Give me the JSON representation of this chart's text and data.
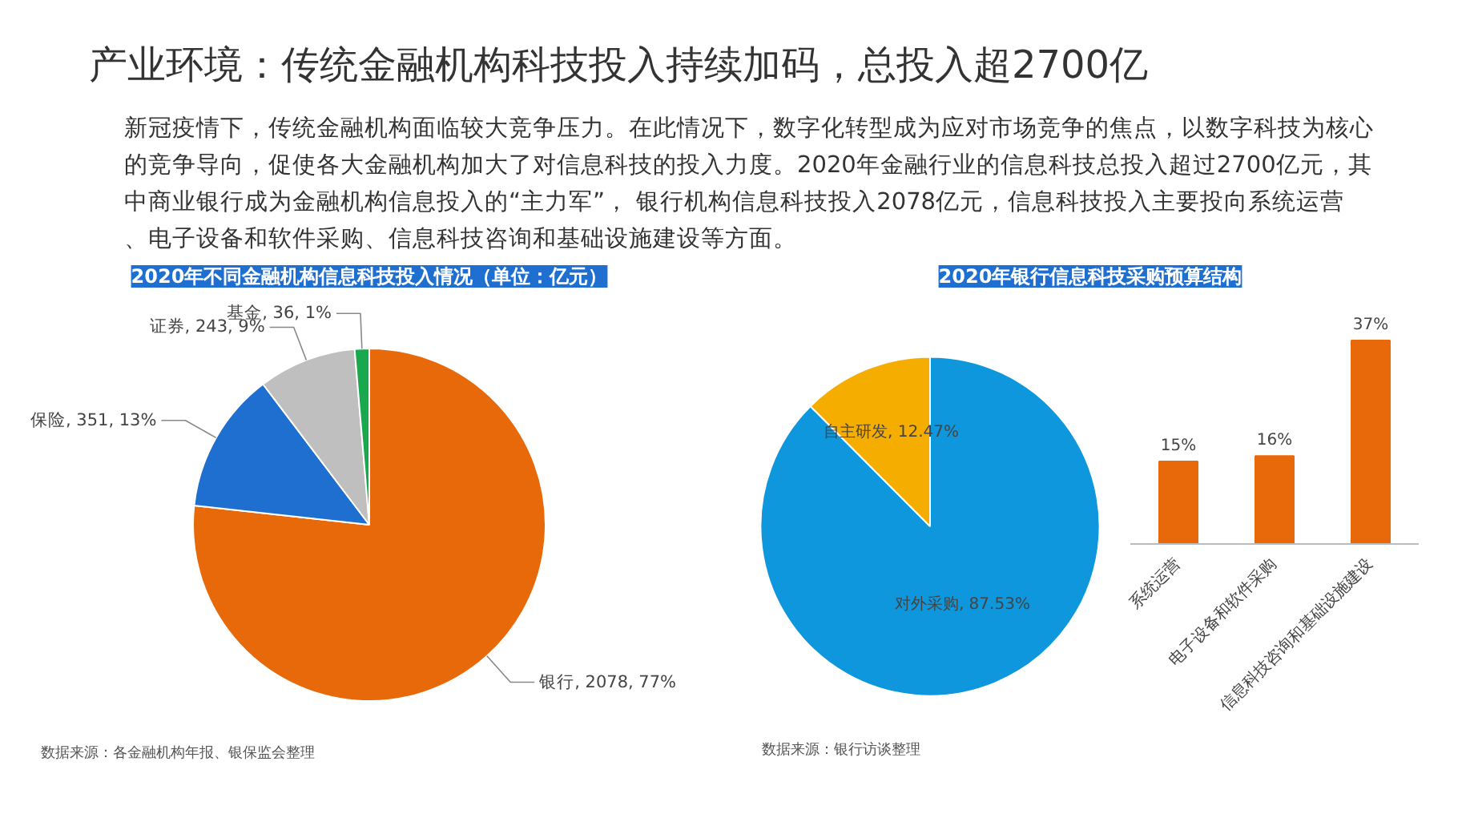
{
  "chart_data": [
    {
      "type": "other",
      "title": "产业环境：传统金融机构科技投入持续加码，总投入超2700亿",
      "subtitle": "新冠疫情下，传统金融机构面临较大竞争压力。在此情况下，数字化转型成为应对市场竞争的焦点，以数字科技为核心的竞争导向，促使各大金融机构加大了对信息科技的投入力度。2020年金融行业的信息科技总投入超过2700亿元，其中商业银行成为金融机构信息投入的“主力军”， 银行机构信息科技投入2078亿元，信息科技投入主要投向系统运营、电子设备和软件采购、信息科技咨询和基础设施建设等方面。"
    },
    {
      "type": "pie",
      "title": "2020年不同金融机构信息科技投入情况（单位：亿元）",
      "categories": [
        "银行",
        "保险",
        "证券",
        "基金"
      ],
      "values": [
        2078,
        351,
        243,
        36
      ],
      "value_labels": [
        "2078, 77%",
        "351, 13%",
        "243, 9%",
        "36, 1%"
      ],
      "colors": [
        "#e8690a",
        "#1e6fcf",
        "#bfbfbf",
        "#1aa84f"
      ],
      "annotations": [
        "数据来源：各金融机构年报、银保监会整理"
      ]
    },
    {
      "type": "pie",
      "title": "2020年银行信息科技采购预算结构",
      "categories": [
        "对外采购",
        "自主研发"
      ],
      "values": [
        87.53,
        12.47
      ],
      "value_labels": [
        "87.53%",
        "12.47%"
      ],
      "colors": [
        "#0e97dc",
        "#f5ad00"
      ],
      "annotations": [
        "数据来源：银行访谈整理"
      ]
    },
    {
      "type": "bar",
      "categories": [
        "系统运营",
        "电子设备和软件采购",
        "信息科技咨询和基础设施建设"
      ],
      "values": [
        15,
        16,
        37
      ],
      "value_labels": [
        "15%",
        "16%",
        "37%"
      ],
      "color": "#e8690a"
    }
  ]
}
